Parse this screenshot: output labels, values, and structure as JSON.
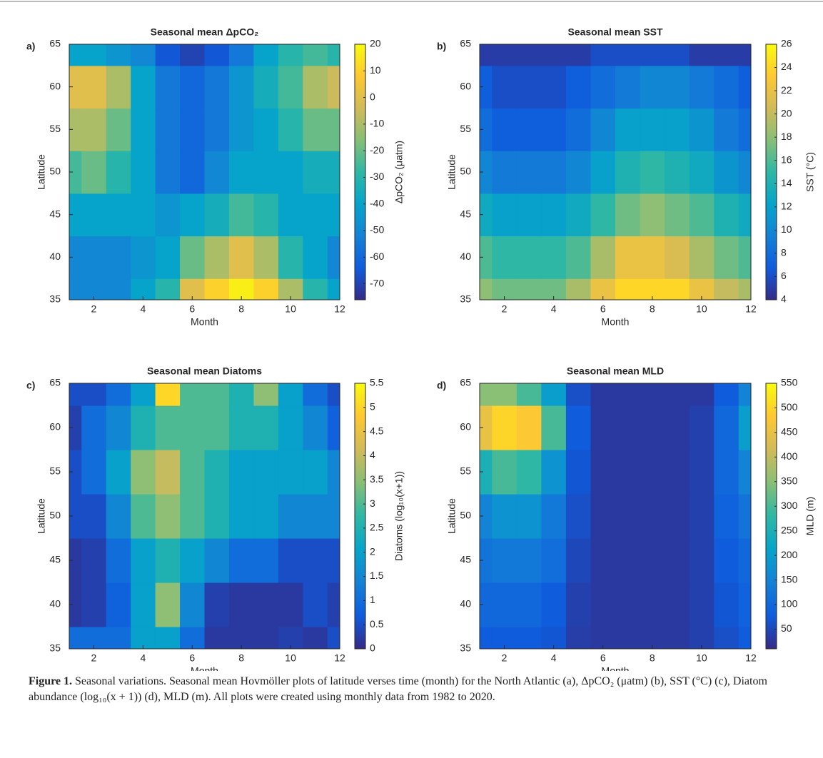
{
  "chart_data": [
    {
      "type": "heatmap",
      "label": "a)",
      "title": "Seasonal mean ΔpCO₂",
      "x_label": "Month",
      "y_label": "Latitude",
      "colorbar_label": "ΔpCO₂ (μatm)",
      "x": [
        1,
        2,
        3,
        4,
        5,
        6,
        7,
        8,
        9,
        10,
        11,
        12
      ],
      "y": [
        35,
        40,
        45,
        50,
        55,
        60,
        65
      ],
      "values": [
        [
          -50,
          -50,
          -50,
          -40,
          -30,
          0,
          10,
          17,
          10,
          -10,
          -30,
          -40
        ],
        [
          -50,
          -50,
          -50,
          -45,
          -40,
          -20,
          -10,
          0,
          -10,
          -30,
          -40,
          -50
        ],
        [
          -40,
          -40,
          -40,
          -40,
          -45,
          -40,
          -35,
          -25,
          -30,
          -40,
          -40,
          -40
        ],
        [
          -25,
          -20,
          -30,
          -40,
          -55,
          -60,
          -50,
          -40,
          -40,
          -40,
          -35,
          -35
        ],
        [
          -10,
          -10,
          -20,
          -40,
          -55,
          -60,
          -55,
          -45,
          -40,
          -30,
          -20,
          -20
        ],
        [
          0,
          0,
          -10,
          -40,
          -55,
          -60,
          -55,
          -45,
          -35,
          -25,
          -10,
          -5
        ],
        [
          -40,
          -40,
          -45,
          -50,
          -65,
          -70,
          -65,
          -55,
          -40,
          -30,
          -25,
          -30
        ]
      ],
      "xlim": [
        1,
        12
      ],
      "xticks": [
        2,
        4,
        6,
        8,
        10,
        12
      ],
      "ylim": [
        35,
        65
      ],
      "yticks": [
        35,
        40,
        45,
        50,
        55,
        60,
        65
      ],
      "clim": [
        -76,
        20
      ],
      "cticks": [
        -70,
        -60,
        -50,
        -40,
        -30,
        -20,
        -10,
        0,
        10,
        20
      ],
      "colormap": [
        "#352a87",
        "#0f5cdd",
        "#1481d6",
        "#06a4ca",
        "#2eb7a4",
        "#87bf77",
        "#d1bb59",
        "#fec832",
        "#f9fb0e"
      ]
    },
    {
      "type": "heatmap",
      "label": "b)",
      "title": "Seasonal mean SST",
      "x_label": "Month",
      "y_label": "Latitude",
      "colorbar_label": "SST (°C)",
      "x": [
        1,
        2,
        3,
        4,
        5,
        6,
        7,
        8,
        9,
        10,
        11,
        12
      ],
      "y": [
        35,
        40,
        45,
        50,
        55,
        60,
        65
      ],
      "values": [
        [
          18,
          17,
          17,
          17,
          19,
          22,
          24,
          24,
          24,
          22,
          20,
          19
        ],
        [
          16,
          15,
          15,
          15,
          16,
          19,
          22,
          22,
          21,
          19,
          17,
          16
        ],
        [
          13,
          12,
          12,
          12,
          13,
          15,
          17,
          18,
          17,
          16,
          14,
          13
        ],
        [
          10,
          9,
          9,
          9,
          10,
          12,
          14,
          15,
          14,
          13,
          11,
          10
        ],
        [
          8,
          7,
          7,
          7,
          8,
          10,
          12,
          12,
          12,
          11,
          9,
          8
        ],
        [
          7,
          6,
          6,
          6,
          7,
          8,
          9,
          10,
          10,
          9,
          8,
          7
        ],
        [
          5,
          5,
          5,
          5,
          5,
          6,
          6,
          6,
          6,
          5,
          5,
          5
        ]
      ],
      "xlim": [
        1,
        12
      ],
      "xticks": [
        2,
        4,
        6,
        8,
        10,
        12
      ],
      "ylim": [
        35,
        65
      ],
      "yticks": [
        35,
        40,
        45,
        50,
        55,
        60,
        65
      ],
      "clim": [
        4,
        26
      ],
      "cticks": [
        4,
        6,
        8,
        10,
        12,
        14,
        16,
        18,
        20,
        22,
        24,
        26
      ],
      "colormap": [
        "#352a87",
        "#0f5cdd",
        "#1481d6",
        "#06a4ca",
        "#2eb7a4",
        "#87bf77",
        "#d1bb59",
        "#fec832",
        "#f9fb0e"
      ]
    },
    {
      "type": "heatmap",
      "label": "c)",
      "title": "Seasonal mean Diatoms",
      "x_label": "Month",
      "y_label": "Latitude",
      "colorbar_label": "Diatoms (log₁₀(x+1))",
      "x": [
        1,
        2,
        3,
        4,
        5,
        6,
        7,
        8,
        9,
        10,
        11,
        12
      ],
      "y": [
        35,
        40,
        45,
        50,
        55,
        60,
        65
      ],
      "values": [
        [
          1,
          1,
          1,
          2,
          2,
          1,
          0.2,
          0.2,
          0.2,
          0.3,
          0.2,
          0.5
        ],
        [
          0.2,
          0.3,
          0.8,
          2,
          3.5,
          1.5,
          0.3,
          0.2,
          0.2,
          0.2,
          0.5,
          0.3
        ],
        [
          0.2,
          0.3,
          1,
          2,
          2.5,
          2,
          1.5,
          1,
          1,
          0.5,
          0.5,
          0.5
        ],
        [
          0.5,
          0.5,
          1.5,
          3,
          3.5,
          3,
          2.5,
          2,
          2,
          1.5,
          1.5,
          1.5
        ],
        [
          0.5,
          1,
          2,
          3.5,
          4,
          3,
          2.5,
          2,
          2,
          2,
          2,
          1.5
        ],
        [
          0.3,
          1,
          1.5,
          2.5,
          3,
          3,
          3,
          2.5,
          2.5,
          2,
          1.5,
          0.8
        ],
        [
          0.5,
          0.5,
          1,
          2,
          5,
          3,
          3,
          2.5,
          3.5,
          2,
          1,
          0.5
        ]
      ],
      "xlim": [
        1,
        12
      ],
      "xticks": [
        2,
        4,
        6,
        8,
        10,
        12
      ],
      "ylim": [
        35,
        65
      ],
      "yticks": [
        35,
        40,
        45,
        50,
        55,
        60,
        65
      ],
      "clim": [
        0,
        5.5
      ],
      "cticks": [
        0,
        0.5,
        1,
        1.5,
        2,
        2.5,
        3,
        3.5,
        4,
        4.5,
        5,
        5.5
      ],
      "colormap": [
        "#352a87",
        "#0f5cdd",
        "#1481d6",
        "#06a4ca",
        "#2eb7a4",
        "#87bf77",
        "#d1bb59",
        "#fec832",
        "#f9fb0e"
      ]
    },
    {
      "type": "heatmap",
      "label": "d)",
      "title": "Seasonal mean MLD",
      "x_label": "Month",
      "y_label": "Latitude",
      "colorbar_label": "MLD (m)",
      "x": [
        1,
        2,
        3,
        4,
        5,
        6,
        7,
        8,
        9,
        10,
        11,
        12
      ],
      "y": [
        35,
        40,
        45,
        50,
        55,
        60,
        65
      ],
      "values": [
        [
          80,
          80,
          80,
          70,
          35,
          30,
          30,
          30,
          30,
          40,
          60,
          80
        ],
        [
          100,
          100,
          100,
          80,
          40,
          30,
          30,
          30,
          30,
          40,
          70,
          90
        ],
        [
          120,
          130,
          130,
          110,
          50,
          30,
          30,
          30,
          30,
          40,
          80,
          100
        ],
        [
          150,
          180,
          180,
          130,
          60,
          30,
          30,
          30,
          30,
          40,
          90,
          120
        ],
        [
          250,
          300,
          280,
          180,
          70,
          30,
          30,
          30,
          30,
          40,
          100,
          150
        ],
        [
          450,
          500,
          480,
          300,
          80,
          30,
          30,
          30,
          30,
          40,
          100,
          200
        ],
        [
          350,
          350,
          300,
          200,
          60,
          30,
          30,
          30,
          30,
          30,
          80,
          150
        ]
      ],
      "xlim": [
        1,
        12
      ],
      "xticks": [
        2,
        4,
        6,
        8,
        10,
        12
      ],
      "ylim": [
        35,
        65
      ],
      "yticks": [
        35,
        40,
        45,
        50,
        55,
        60,
        65
      ],
      "clim": [
        10,
        550
      ],
      "cticks": [
        50,
        100,
        150,
        200,
        250,
        300,
        350,
        400,
        450,
        500,
        550
      ],
      "colormap": [
        "#352a87",
        "#0f5cdd",
        "#1481d6",
        "#06a4ca",
        "#2eb7a4",
        "#87bf77",
        "#d1bb59",
        "#fec832",
        "#f9fb0e"
      ]
    }
  ],
  "caption": {
    "label": "Figure 1.",
    "text": "Seasonal variations. Seasonal mean Hovmöller plots of latitude verses time (month) for the North Atlantic (a), ΔpCO₂ (μatm) (b), SST (°C) (c), Diatom abundance (log₁₀(x + 1)) (d), MLD (m). All plots were created using monthly data from 1982 to 2020."
  }
}
